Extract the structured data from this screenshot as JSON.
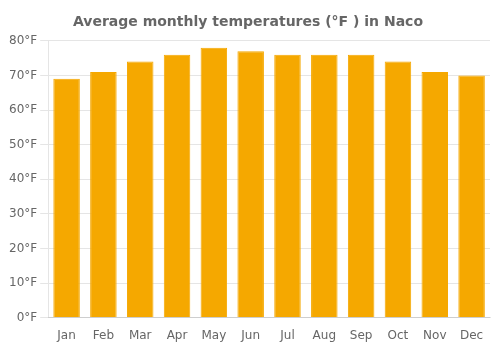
{
  "chart_data": {
    "type": "bar",
    "title": "Average monthly temperatures (°F ) in Naco",
    "categories": [
      "Jan",
      "Feb",
      "Mar",
      "Apr",
      "May",
      "Jun",
      "Jul",
      "Aug",
      "Sep",
      "Oct",
      "Nov",
      "Dec"
    ],
    "values": [
      69,
      71,
      74,
      76,
      78,
      77,
      76,
      76,
      76,
      74,
      71,
      70
    ],
    "color": "#F5A800",
    "ylim": [
      0,
      80
    ],
    "yticks": [
      {
        "value": 0,
        "label": "0°F"
      },
      {
        "value": 10,
        "label": "10°F"
      },
      {
        "value": 20,
        "label": "20°F"
      },
      {
        "value": 30,
        "label": "30°F"
      },
      {
        "value": 40,
        "label": "40°F"
      },
      {
        "value": 50,
        "label": "50°F"
      },
      {
        "value": 60,
        "label": "60°F"
      },
      {
        "value": 70,
        "label": "70°F"
      },
      {
        "value": 80,
        "label": "80°F"
      }
    ],
    "grid": true
  }
}
